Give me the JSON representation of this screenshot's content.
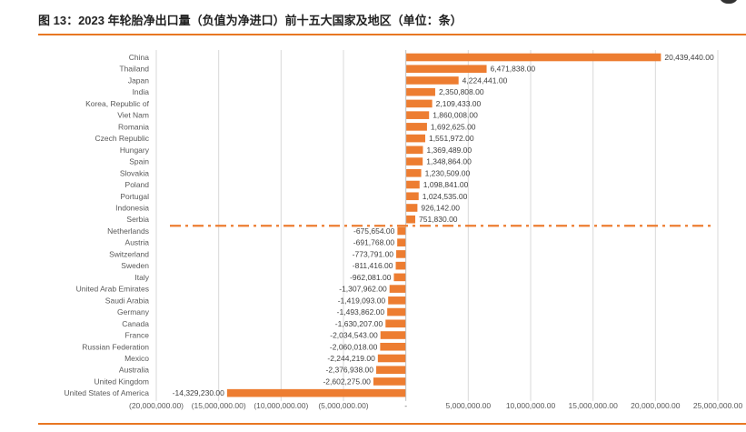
{
  "header": {
    "title": "图 13：2023 年轮胎净出口量（负值为净进口）前十五大国家及地区（单位：条）"
  },
  "chart_data": {
    "type": "bar",
    "orientation": "horizontal",
    "title": "2023 年轮胎净出口量（负值为净进口）前十五大国家及地区（单位：条）",
    "categories": [
      "China",
      "Thailand",
      "Japan",
      "India",
      "Korea, Republic of",
      "Viet Nam",
      "Romania",
      "Czech Republic",
      "Hungary",
      "Spain",
      "Slovakia",
      "Poland",
      "Portugal",
      "Indonesia",
      "Serbia",
      "Netherlands",
      "Austria",
      "Switzerland",
      "Sweden",
      "Italy",
      "United Arab Emirates",
      "Saudi Arabia",
      "Germany",
      "Canada",
      "France",
      "Russian Federation",
      "Mexico",
      "Australia",
      "United Kingdom",
      "United States of America"
    ],
    "values": [
      20439440,
      6471838,
      4224441,
      2350808,
      2109433,
      1860008,
      1692625,
      1551972,
      1369489,
      1348864,
      1230509,
      1098841,
      1024535,
      926142,
      751830,
      -675654,
      -691768,
      -773791,
      -811416,
      -962081,
      -1307962,
      -1419093,
      -1493862,
      -1630207,
      -2034543,
      -2060018,
      -2244219,
      -2376938,
      -2602275,
      -14329230
    ],
    "value_labels": [
      "20,439,440.00",
      "6,471,838.00",
      "4,224,441.00",
      "2,350,808.00",
      "2,109,433.00",
      "1,860,008.00",
      "1,692,625.00",
      "1,551,972.00",
      "1,369,489.00",
      "1,348,864.00",
      "1,230,509.00",
      "1,098,841.00",
      "1,024,535.00",
      "926,142.00",
      "751,830.00",
      "-675,654.00",
      "-691,768.00",
      "-773,791.00",
      "-811,416.00",
      "-962,081.00",
      "-1,307,962.00",
      "-1,419,093.00",
      "-1,493,862.00",
      "-1,630,207.00",
      "-2,034,543.00",
      "-2,060,018.00",
      "-2,244,219.00",
      "-2,376,938.00",
      "-2,602,275.00",
      "-14,329,230.00"
    ],
    "xlim": [
      -20000000,
      25000000
    ],
    "x_ticks": [
      -20000000,
      -15000000,
      -10000000,
      -5000000,
      0,
      5000000,
      10000000,
      15000000,
      20000000,
      25000000
    ],
    "x_tick_labels": [
      "(20,000,000.00)",
      "(15,000,000.00)",
      "(10,000,000.00)",
      "(5,000,000.00)",
      "-",
      "5,000,000.00",
      "10,000,000.00",
      "15,000,000.00",
      "20,000,000.00",
      "25,000,000.00"
    ],
    "separator_after_category": "Serbia",
    "grid": true,
    "colors": {
      "bar": "#ED7D31",
      "separator": "#ED7D31",
      "grid": "#d9d9d9",
      "rule": "#e87722"
    }
  }
}
